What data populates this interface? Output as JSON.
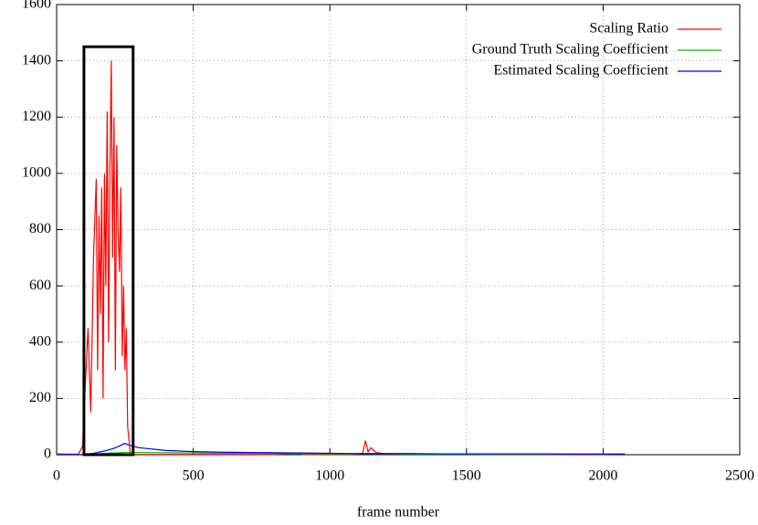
{
  "chart_data": {
    "type": "line",
    "xlabel": "frame number",
    "xlim": [
      0,
      2500
    ],
    "xticks": [
      0,
      500,
      1000,
      1500,
      2000,
      2500
    ],
    "ylim": [
      0,
      1600
    ],
    "yticks": [
      0,
      200,
      400,
      600,
      800,
      1000,
      1200,
      1400,
      1600
    ],
    "grid": true,
    "legend": "top-right",
    "highlight_box": {
      "x": [
        100,
        280
      ],
      "y": [
        0,
        1450
      ]
    },
    "x": [
      0,
      40,
      80,
      95,
      105,
      115,
      125,
      135,
      145,
      150,
      155,
      160,
      165,
      170,
      175,
      180,
      185,
      190,
      195,
      200,
      205,
      210,
      215,
      220,
      225,
      230,
      235,
      240,
      245,
      250,
      255,
      260,
      270,
      300,
      400,
      500,
      600,
      700,
      800,
      870,
      900,
      1000,
      1100,
      1120,
      1130,
      1140,
      1150,
      1160,
      1170,
      1200,
      1300,
      1400,
      1500,
      1600,
      1700,
      1800,
      1900,
      2000,
      2080
    ],
    "series": [
      {
        "name": "Scaling Ratio",
        "color": "#ff0000",
        "values": [
          3,
          2,
          2,
          30,
          250,
          450,
          150,
          700,
          980,
          300,
          850,
          500,
          950,
          200,
          1000,
          600,
          1220,
          400,
          1000,
          1400,
          700,
          1200,
          300,
          1100,
          800,
          650,
          950,
          350,
          600,
          300,
          450,
          100,
          2,
          1,
          1,
          1,
          1,
          1,
          1,
          6,
          1,
          1,
          2,
          5,
          50,
          10,
          25,
          15,
          8,
          3,
          2,
          3,
          2,
          1,
          1,
          1,
          1,
          1,
          3
        ]
      },
      {
        "name": "Ground Truth Scaling Coefficient",
        "color": "#00c000",
        "values": [
          0,
          0,
          0,
          0,
          1,
          1,
          2,
          2,
          3,
          3,
          3,
          4,
          4,
          4,
          5,
          5,
          5,
          5,
          6,
          6,
          6,
          6,
          6,
          7,
          7,
          7,
          7,
          7,
          8,
          8,
          8,
          8,
          8,
          8,
          7,
          6,
          5,
          5,
          4,
          4,
          4,
          3,
          3,
          3,
          3,
          3,
          3,
          3,
          3,
          3,
          2,
          2,
          2,
          2,
          2,
          2,
          2,
          2,
          2
        ]
      },
      {
        "name": "Estimated Scaling Coefficient",
        "color": "#0000ff",
        "values": [
          0,
          0,
          0,
          1,
          2,
          3,
          4,
          5,
          7,
          8,
          9,
          10,
          11,
          12,
          13,
          14,
          16,
          17,
          18,
          20,
          21,
          23,
          25,
          27,
          29,
          31,
          33,
          36,
          38,
          40,
          38,
          36,
          33,
          25,
          15,
          11,
          9,
          8,
          7,
          6,
          6,
          5,
          4,
          4,
          4,
          4,
          4,
          4,
          4,
          4,
          4,
          3,
          3,
          3,
          3,
          3,
          2,
          2,
          2
        ]
      }
    ]
  }
}
